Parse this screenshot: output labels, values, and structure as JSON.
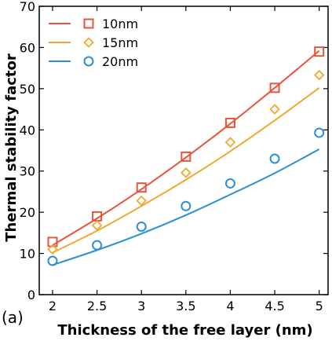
{
  "chart_data": {
    "type": "scatter",
    "xlabel": "Thickness of the free layer (nm)",
    "ylabel": "Thermal stability factor",
    "panel_label": "(a)",
    "xlim": [
      1.85,
      5.1
    ],
    "ylim": [
      0,
      70
    ],
    "xticks": [
      2,
      2.5,
      3,
      3.5,
      4,
      4.5,
      5
    ],
    "yticks": [
      0,
      10,
      20,
      30,
      40,
      50,
      60,
      70
    ],
    "xtick_labels": [
      "2",
      "2.5",
      "3",
      "3.5",
      "4",
      "4.5",
      "5"
    ],
    "ytick_labels": [
      "0",
      "10",
      "20",
      "30",
      "40",
      "50",
      "60",
      "70"
    ],
    "legend_position": "top-left",
    "grid": false,
    "series": [
      {
        "name": "10nm",
        "color": "#e8543a",
        "marker": "square",
        "x": [
          2,
          2.5,
          3,
          3.5,
          4,
          4.5,
          5
        ],
        "values": [
          12.8,
          19.0,
          26.0,
          33.5,
          41.7,
          50.2,
          59.0
        ],
        "fit": [
          12.0,
          18.5,
          25.6,
          33.3,
          41.5,
          50.2,
          59.2
        ]
      },
      {
        "name": "15nm",
        "color": "#f0a830",
        "marker": "diamond",
        "x": [
          2,
          2.5,
          3,
          3.5,
          4,
          4.5,
          5
        ],
        "values": [
          11.0,
          16.8,
          22.8,
          29.6,
          37.0,
          45.0,
          53.3
        ],
        "fit": [
          10.2,
          15.5,
          21.5,
          27.9,
          34.8,
          42.3,
          50.2
        ]
      },
      {
        "name": "20nm",
        "color": "#2a8fd6",
        "marker": "circle",
        "x": [
          2,
          2.5,
          3,
          3.5,
          4,
          4.5,
          5
        ],
        "values": [
          8.2,
          12.0,
          16.5,
          21.5,
          27.0,
          33.0,
          39.3
        ],
        "fit": [
          7.2,
          10.8,
          14.8,
          19.3,
          24.3,
          29.5,
          35.3
        ]
      }
    ]
  }
}
